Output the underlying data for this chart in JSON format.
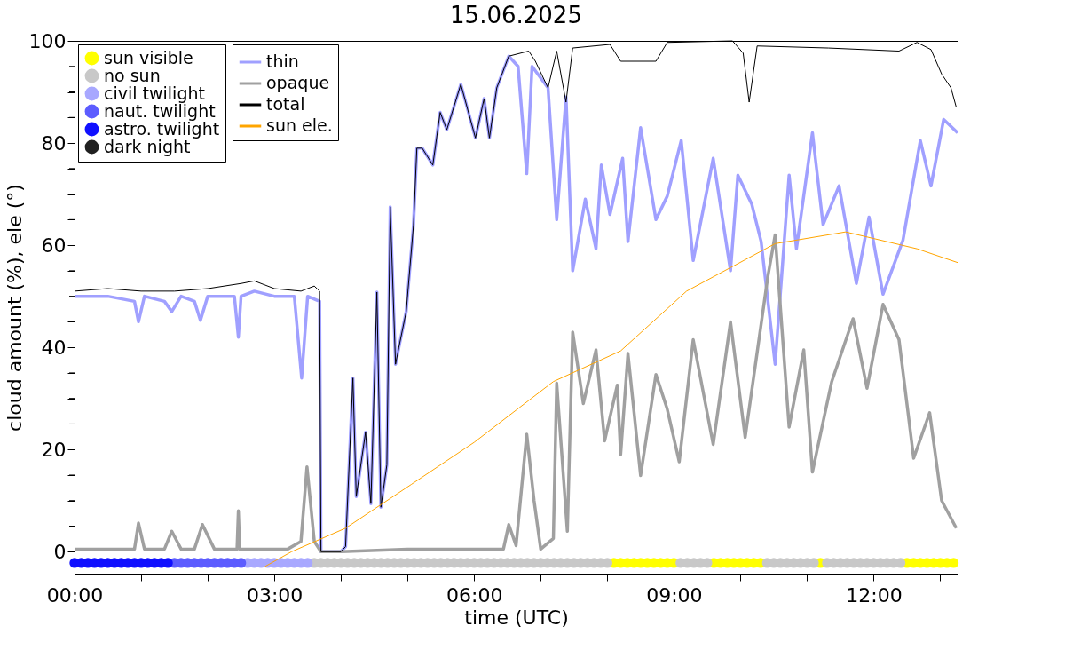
{
  "chart_data": {
    "type": "line",
    "title": "15.06.2025",
    "xlabel": "time (UTC)",
    "ylabel": "cloud amount (%), ele (°)",
    "xlim": [
      0,
      13.26
    ],
    "xticks": [
      {
        "value": 0,
        "label": "00:00"
      },
      {
        "value": 1,
        "label": null
      },
      {
        "value": 2,
        "label": null
      },
      {
        "value": 3,
        "label": "03:00"
      },
      {
        "value": 4,
        "label": null
      },
      {
        "value": 5,
        "label": null
      },
      {
        "value": 6,
        "label": "06:00"
      },
      {
        "value": 7,
        "label": null
      },
      {
        "value": 8,
        "label": null
      },
      {
        "value": 9,
        "label": "09:00"
      },
      {
        "value": 10,
        "label": null
      },
      {
        "value": 11,
        "label": null
      },
      {
        "value": 12,
        "label": "12:00"
      },
      {
        "value": 13,
        "label": null
      }
    ],
    "ylim": [
      -4.3,
      100
    ],
    "yticks": [
      0,
      {
        "value": 5,
        "label": null
      },
      {
        "value": 10,
        "label": null
      },
      {
        "value": 15,
        "label": null
      },
      20,
      {
        "value": 25,
        "label": null
      },
      {
        "value": 30,
        "label": null
      },
      {
        "value": 35,
        "label": null
      },
      40,
      {
        "value": 45,
        "label": null
      },
      {
        "value": 50,
        "label": null
      },
      {
        "value": 55,
        "label": null
      },
      60,
      {
        "value": 65,
        "label": null
      },
      {
        "value": 70,
        "label": null
      },
      {
        "value": 75,
        "label": null
      },
      80,
      {
        "value": 85,
        "label": null
      },
      {
        "value": 90,
        "label": null
      },
      {
        "value": 95,
        "label": null
      },
      100
    ],
    "grid": false,
    "legend": "top left",
    "line_style": "solid",
    "series": [
      {
        "name": "thin",
        "color": "#a0a0ff",
        "x": [
          0,
          0.5,
          0.9,
          0.96,
          1.05,
          1.35,
          1.46,
          1.6,
          1.8,
          1.89,
          2.0,
          2.4,
          2.46,
          2.5,
          2.7,
          3.0,
          3.3,
          3.41,
          3.5,
          3.68,
          3.7,
          4.0,
          4.07,
          4.18,
          4.23,
          4.37,
          4.45,
          4.54,
          4.6,
          4.69,
          4.74,
          4.82,
          4.87,
          4.98,
          5.09,
          5.14,
          5.22,
          5.38,
          5.49,
          5.59,
          5.8,
          6.02,
          6.15,
          6.23,
          6.34,
          6.52,
          6.66,
          6.79,
          6.87,
          7.11,
          7.24,
          7.38,
          7.48,
          7.67,
          7.83,
          7.91,
          8.04,
          8.23,
          8.31,
          8.5,
          8.73,
          8.9,
          9.11,
          9.29,
          9.59,
          9.85,
          9.96,
          10.17,
          10.31,
          10.52,
          10.73,
          10.84,
          11.08,
          11.24,
          11.48,
          11.74,
          11.93,
          12.14,
          12.44,
          12.7,
          12.86,
          13.05,
          13.26
        ],
        "values": [
          50,
          50,
          49,
          45,
          50,
          49,
          47,
          50,
          49,
          45.3,
          50,
          50,
          42,
          50,
          51,
          50,
          50,
          34,
          50,
          49,
          0,
          0,
          1,
          34,
          10.8,
          23.4,
          9.4,
          50.8,
          8.7,
          17,
          67.5,
          36.7,
          40,
          47,
          64,
          79,
          79,
          75.7,
          86,
          82.6,
          91.5,
          81,
          88.7,
          81,
          90.8,
          97,
          95,
          74,
          95,
          90.8,
          65,
          89,
          55,
          69,
          59.3,
          75.7,
          66,
          77,
          60.7,
          83,
          65,
          69.6,
          80.5,
          57,
          77,
          55,
          73.7,
          68,
          60.7,
          36.7,
          73.7,
          59.3,
          82,
          64,
          71.6,
          52.5,
          65.5,
          50.4,
          61,
          80.5,
          71.6,
          84.6,
          82
        ]
      },
      {
        "name": "opaque",
        "color": "#a0a0a0",
        "x": [
          0,
          0.5,
          0.9,
          0.96,
          1.05,
          1.35,
          1.46,
          1.6,
          1.8,
          1.92,
          2.1,
          2.44,
          2.46,
          2.48,
          3.2,
          3.4,
          3.49,
          3.6,
          3.7,
          4.0,
          5.0,
          6.0,
          6.44,
          6.52,
          6.63,
          6.79,
          6.9,
          7.0,
          7.19,
          7.24,
          7.4,
          7.48,
          7.64,
          7.83,
          7.96,
          8.15,
          8.2,
          8.31,
          8.5,
          8.73,
          8.9,
          9.08,
          9.29,
          9.59,
          9.85,
          10.07,
          10.41,
          10.52,
          10.73,
          10.95,
          11.08,
          11.37,
          11.69,
          11.9,
          12.14,
          12.38,
          12.6,
          12.84,
          13.02,
          13.24
        ],
        "values": [
          0.5,
          0.5,
          0.5,
          5.6,
          0.5,
          0.5,
          4,
          0.5,
          0.5,
          5.3,
          0.5,
          0.5,
          8,
          0.5,
          0.5,
          2,
          16.6,
          2,
          0,
          0,
          0.5,
          0.5,
          0.5,
          5.3,
          1.2,
          23,
          10,
          0.5,
          2.6,
          33,
          4,
          43,
          29,
          39.5,
          21.7,
          32.6,
          19,
          38.8,
          14.9,
          34.7,
          27.9,
          17.6,
          41.5,
          21,
          45,
          22.4,
          53.8,
          62,
          24.4,
          39.5,
          15.6,
          33.3,
          45.6,
          32,
          48.4,
          41.5,
          18.3,
          27.2,
          10,
          4.6
        ]
      },
      {
        "name": "total",
        "color": "#000000",
        "x": [
          0,
          0.5,
          1,
          1.5,
          2,
          2.5,
          2.7,
          3,
          3.4,
          3.6,
          3.68,
          3.7,
          4.0,
          4.07,
          4.18,
          4.23,
          4.37,
          4.45,
          4.54,
          4.6,
          4.69,
          4.74,
          4.82,
          4.87,
          4.98,
          5.09,
          5.14,
          5.22,
          5.38,
          5.49,
          5.59,
          5.8,
          6.02,
          6.15,
          6.23,
          6.34,
          6.52,
          6.82,
          6.92,
          7.11,
          7.24,
          7.38,
          7.48,
          8.04,
          8.2,
          8.73,
          8.9,
          9.88,
          10.04,
          10.13,
          10.25,
          11.32,
          12.38,
          12.65,
          12.86,
          13.02,
          13.16,
          13.24
        ],
        "values": [
          51,
          51.5,
          51,
          51,
          51.5,
          52.5,
          53,
          51.5,
          51,
          52,
          51,
          0,
          0,
          1,
          34,
          10.8,
          23.4,
          9.4,
          50.8,
          8.7,
          17,
          67.5,
          36.7,
          40,
          47,
          64,
          79,
          79,
          75.7,
          86,
          82.6,
          91.5,
          81,
          88.7,
          81,
          90.8,
          97,
          98,
          96,
          90.8,
          98,
          88,
          98.6,
          99.3,
          96,
          96,
          99.7,
          100,
          97.6,
          88,
          99,
          98.6,
          98,
          99.7,
          98.3,
          93.5,
          90.8,
          87
        ]
      },
      {
        "name": "sun ele.",
        "color": "#ffa500",
        "x": [
          2.86,
          3.26,
          4.07,
          5.06,
          6.0,
          7.19,
          8.2,
          9.19,
          10.52,
          11.58,
          12.65,
          13.26
        ],
        "values": [
          -2.9,
          0,
          4.6,
          13.2,
          21.4,
          33.3,
          39.3,
          51,
          60.3,
          62.6,
          59.3,
          56.6
        ]
      },
      {
        "name": "sun visible",
        "type": "scatter",
        "marker": "circle",
        "color": "#ffff00",
        "x": [
          8.1,
          8.2,
          8.3,
          8.4,
          8.5,
          8.6,
          8.7,
          8.8,
          8.9,
          9.0,
          9.6,
          9.7,
          9.8,
          9.9,
          10.0,
          10.1,
          10.2,
          10.3,
          11.2,
          12.5,
          12.6,
          12.7,
          12.8,
          12.9,
          13.0,
          13.1,
          13.2
        ],
        "values": [
          -2.2,
          -2.2,
          -2.2,
          -2.2,
          -2.2,
          -2.2,
          -2.2,
          -2.2,
          -2.2,
          -2.2,
          -2.2,
          -2.2,
          -2.2,
          -2.2,
          -2.2,
          -2.2,
          -2.2,
          -2.2,
          -2.2,
          -2.2,
          -2.2,
          -2.2,
          -2.2,
          -2.2,
          -2.2,
          -2.2,
          -2.2
        ]
      },
      {
        "name": "no sun",
        "type": "scatter",
        "marker": "circle",
        "color": "#c8c8c8",
        "x": [
          3.6,
          3.7,
          3.8,
          3.9,
          4.0,
          4.1,
          4.2,
          4.3,
          4.4,
          4.5,
          4.6,
          4.7,
          4.8,
          4.9,
          5.0,
          5.1,
          5.2,
          5.3,
          5.4,
          5.5,
          5.6,
          5.7,
          5.8,
          5.9,
          6.0,
          6.1,
          6.2,
          6.3,
          6.4,
          6.5,
          6.6,
          6.7,
          6.8,
          6.9,
          7.0,
          7.1,
          7.2,
          7.3,
          7.4,
          7.5,
          7.6,
          7.7,
          7.8,
          7.9,
          8.0,
          9.1,
          9.2,
          9.3,
          9.4,
          9.5,
          10.4,
          10.5,
          10.6,
          10.7,
          10.8,
          10.9,
          11.0,
          11.1,
          11.3,
          11.4,
          11.5,
          11.6,
          11.7,
          11.8,
          11.9,
          12.0,
          12.1,
          12.2,
          12.3,
          12.4
        ],
        "values": [
          -2.2,
          -2.2,
          -2.2,
          -2.2,
          -2.2,
          -2.2,
          -2.2,
          -2.2,
          -2.2,
          -2.2,
          -2.2,
          -2.2,
          -2.2,
          -2.2,
          -2.2,
          -2.2,
          -2.2,
          -2.2,
          -2.2,
          -2.2,
          -2.2,
          -2.2,
          -2.2,
          -2.2,
          -2.2,
          -2.2,
          -2.2,
          -2.2,
          -2.2,
          -2.2,
          -2.2,
          -2.2,
          -2.2,
          -2.2,
          -2.2,
          -2.2,
          -2.2,
          -2.2,
          -2.2,
          -2.2,
          -2.2,
          -2.2,
          -2.2,
          -2.2,
          -2.2,
          -2.2,
          -2.2,
          -2.2,
          -2.2,
          -2.2,
          -2.2,
          -2.2,
          -2.2,
          -2.2,
          -2.2,
          -2.2,
          -2.2,
          -2.2,
          -2.2,
          -2.2,
          -2.2,
          -2.2,
          -2.2,
          -2.2,
          -2.2,
          -2.2,
          -2.2,
          -2.2,
          -2.2,
          -2.2
        ]
      },
      {
        "name": "civil twilight",
        "type": "scatter",
        "marker": "circle",
        "color": "#a8a8ff",
        "x": [
          2.6,
          2.7,
          2.8,
          2.9,
          3.0,
          3.1,
          3.2,
          3.3,
          3.4,
          3.5
        ],
        "values": [
          -2.2,
          -2.2,
          -2.2,
          -2.2,
          -2.2,
          -2.2,
          -2.2,
          -2.2,
          -2.2,
          -2.2
        ]
      },
      {
        "name": "naut. twilight",
        "type": "scatter",
        "marker": "circle",
        "color": "#5c5cff",
        "x": [
          1.5,
          1.6,
          1.7,
          1.8,
          1.9,
          2.0,
          2.1,
          2.2,
          2.3,
          2.4,
          2.5
        ],
        "values": [
          -2.2,
          -2.2,
          -2.2,
          -2.2,
          -2.2,
          -2.2,
          -2.2,
          -2.2,
          -2.2,
          -2.2,
          -2.2
        ]
      },
      {
        "name": "astro. twilight",
        "type": "scatter",
        "marker": "circle",
        "color": "#1010ff",
        "x": [
          0.0,
          0.1,
          0.2,
          0.3,
          0.4,
          0.5,
          0.6,
          0.7,
          0.8,
          0.9,
          1.0,
          1.1,
          1.2,
          1.3,
          1.4
        ],
        "values": [
          -2.2,
          -2.2,
          -2.2,
          -2.2,
          -2.2,
          -2.2,
          -2.2,
          -2.2,
          -2.2,
          -2.2,
          -2.2,
          -2.2,
          -2.2,
          -2.2,
          -2.2
        ]
      },
      {
        "name": "dark night",
        "type": "scatter",
        "marker": "circle",
        "color": "#202020"
      }
    ]
  }
}
